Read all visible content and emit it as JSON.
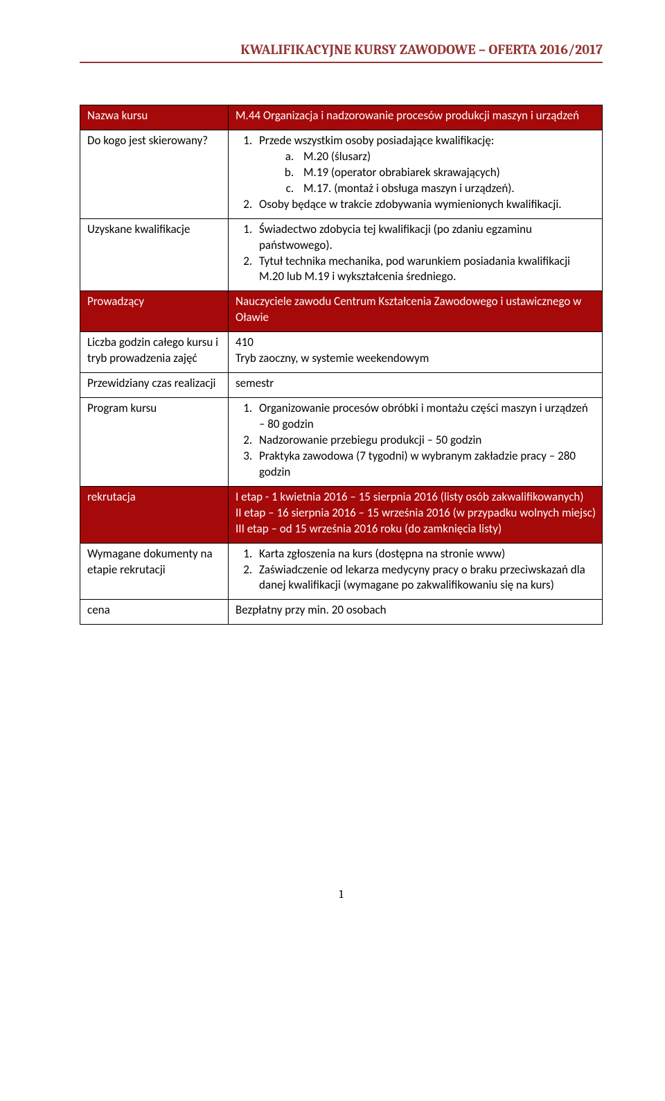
{
  "header": "KWALIFIKACYJNE KURSY ZAWODOWE – OFERTA 2016/2017",
  "rows": {
    "r1": {
      "label": "Nazwa kursu",
      "value": "M.44 Organizacja i nadzorowanie procesów produkcji maszyn i urządzeń"
    },
    "r2": {
      "label": "Do kogo jest skierowany?",
      "l1": "Przede wszystkim osoby posiadające kwalifikację:",
      "a": "M.20 (ślusarz)",
      "b": "M.19 (operator obrabiarek skrawających)",
      "c": "M.17. (montaż i obsługa maszyn i urządzeń).",
      "l2": "Osoby będące w trakcie zdobywania wymienionych kwalifikacji."
    },
    "r3": {
      "label": "Uzyskane kwalifikacje",
      "l1": "Świadectwo zdobycia tej kwalifikacji (po zdaniu egzaminu państwowego).",
      "l2": "Tytuł technika mechanika, pod warunkiem posiadania kwalifikacji M.20 lub M.19 i wykształcenia średniego."
    },
    "r4": {
      "label": "Prowadzący",
      "value": "Nauczyciele zawodu Centrum Kształcenia Zawodowego i ustawicznego w Oławie"
    },
    "r5": {
      "label": "Liczba godzin całego kursu i tryb prowadzenia zajęć",
      "v1": "410",
      "v2": "Tryb zaoczny, w systemie weekendowym"
    },
    "r6": {
      "label": "Przewidziany czas realizacji",
      "value": "semestr"
    },
    "r7": {
      "label": "Program kursu",
      "l1": "Organizowanie procesów obróbki i montażu części maszyn i urządzeń – 80 godzin",
      "l2": "Nadzorowanie przebiegu produkcji – 50 godzin",
      "l3": "Praktyka zawodowa (7 tygodni) w wybranym zakładzie pracy – 280 godzin"
    },
    "r8": {
      "label": "rekrutacja",
      "v1": "I etap - 1 kwietnia 2016 – 15 sierpnia 2016 (listy osób zakwalifikowanych)",
      "v2": "II etap – 16 sierpnia 2016 – 15 września 2016 (w przypadku wolnych miejsc)",
      "v3": "III etap – od 15 września 2016 roku (do zamknięcia listy)"
    },
    "r9": {
      "label": "Wymagane dokumenty na etapie rekrutacji",
      "l1": "Karta zgłoszenia na kurs (dostępna na stronie www)",
      "l2": "Zaświadczenie od lekarza medycyny pracy o braku przeciwskazań dla danej kwalifikacji (wymagane po zakwalifikowaniu się na kurs)"
    },
    "r10": {
      "label": "cena",
      "value": "Bezpłatny przy min. 20 osobach"
    }
  },
  "page_number": "1",
  "colors": {
    "accent": "#943634",
    "table_head_bg": "#a6090a",
    "table_head_fg": "#ffffff",
    "border": "#000000",
    "text": "#000000"
  }
}
